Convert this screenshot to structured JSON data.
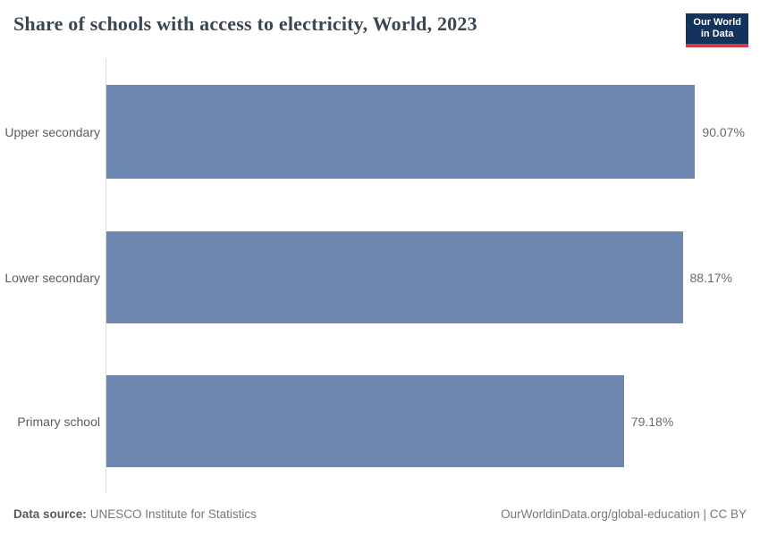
{
  "header": {
    "title": "Share of schools with access to electricity, World, 2023",
    "logo": {
      "line1": "Our World",
      "line2": "in Data"
    }
  },
  "chart_data": {
    "type": "bar",
    "orientation": "horizontal",
    "title": "Share of schools with access to electricity, World, 2023",
    "categories": [
      "Upper secondary",
      "Lower secondary",
      "Primary school"
    ],
    "values": [
      90.07,
      88.17,
      79.18
    ],
    "value_labels": [
      "90.07%",
      "88.17%",
      "79.18%"
    ],
    "xlim": [
      0,
      100
    ],
    "grid": false,
    "legend": "none",
    "bar_color": "#6d87b1"
  },
  "footer": {
    "data_source_label": "Data source:",
    "data_source_value": "UNESCO Institute for Statistics",
    "attribution": "OurWorldinData.org/global-education | CC BY"
  },
  "colors": {
    "bar": "#6d87b1",
    "title": "#3a4653",
    "category_label": "#5b5b5b",
    "value_label": "#6a6a6a",
    "axis_line": "#dbdbdb",
    "footer_text": "#787878",
    "logo_background": "#14335c",
    "logo_stripe": "#cc3b46"
  }
}
